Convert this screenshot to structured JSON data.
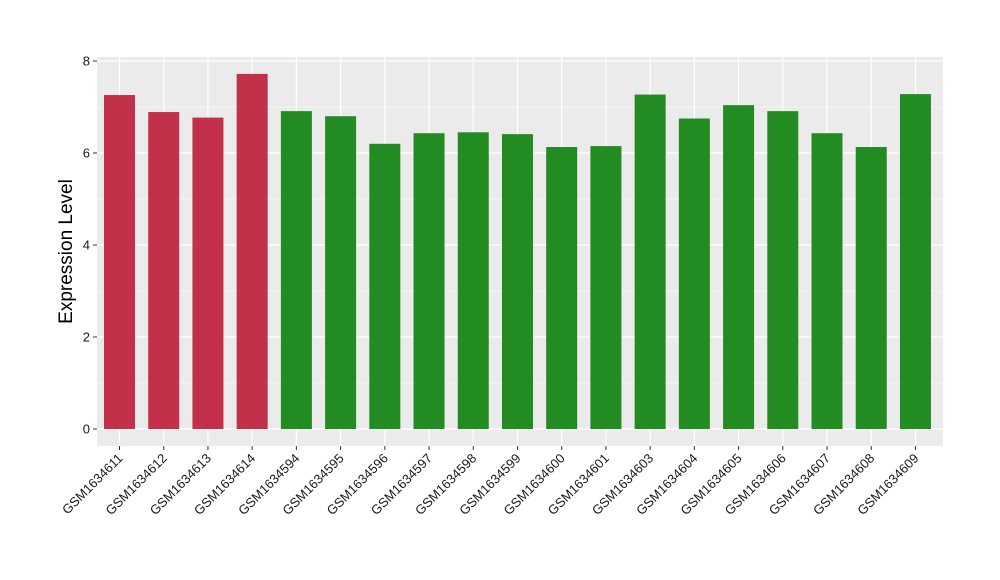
{
  "chart_data": {
    "type": "bar",
    "title": "",
    "xlabel": "",
    "ylabel": "Expression Level",
    "ylim": [
      0,
      8
    ],
    "yticks": [
      0,
      2,
      4,
      6,
      8
    ],
    "grid": true,
    "legend": "none",
    "categories": [
      "GSM1634611",
      "GSM1634612",
      "GSM1634613",
      "GSM1634614",
      "GSM1634594",
      "GSM1634595",
      "GSM1634596",
      "GSM1634597",
      "GSM1634598",
      "GSM1634599",
      "GSM1634600",
      "GSM1634601",
      "GSM1634603",
      "GSM1634604",
      "GSM1634605",
      "GSM1634606",
      "GSM1634607",
      "GSM1634608",
      "GSM1634609"
    ],
    "values": [
      7.26,
      6.89,
      6.77,
      7.72,
      6.91,
      6.8,
      6.2,
      6.43,
      6.45,
      6.41,
      6.13,
      6.15,
      7.27,
      6.75,
      7.04,
      6.91,
      6.43,
      6.13,
      7.28
    ],
    "groups": [
      "red",
      "red",
      "red",
      "red",
      "green",
      "green",
      "green",
      "green",
      "green",
      "green",
      "green",
      "green",
      "green",
      "green",
      "green",
      "green",
      "green",
      "green",
      "green"
    ],
    "colors": {
      "red": "#c3304a",
      "green": "#228b22",
      "panel": "#ebebeb",
      "grid": "#ffffff"
    }
  }
}
